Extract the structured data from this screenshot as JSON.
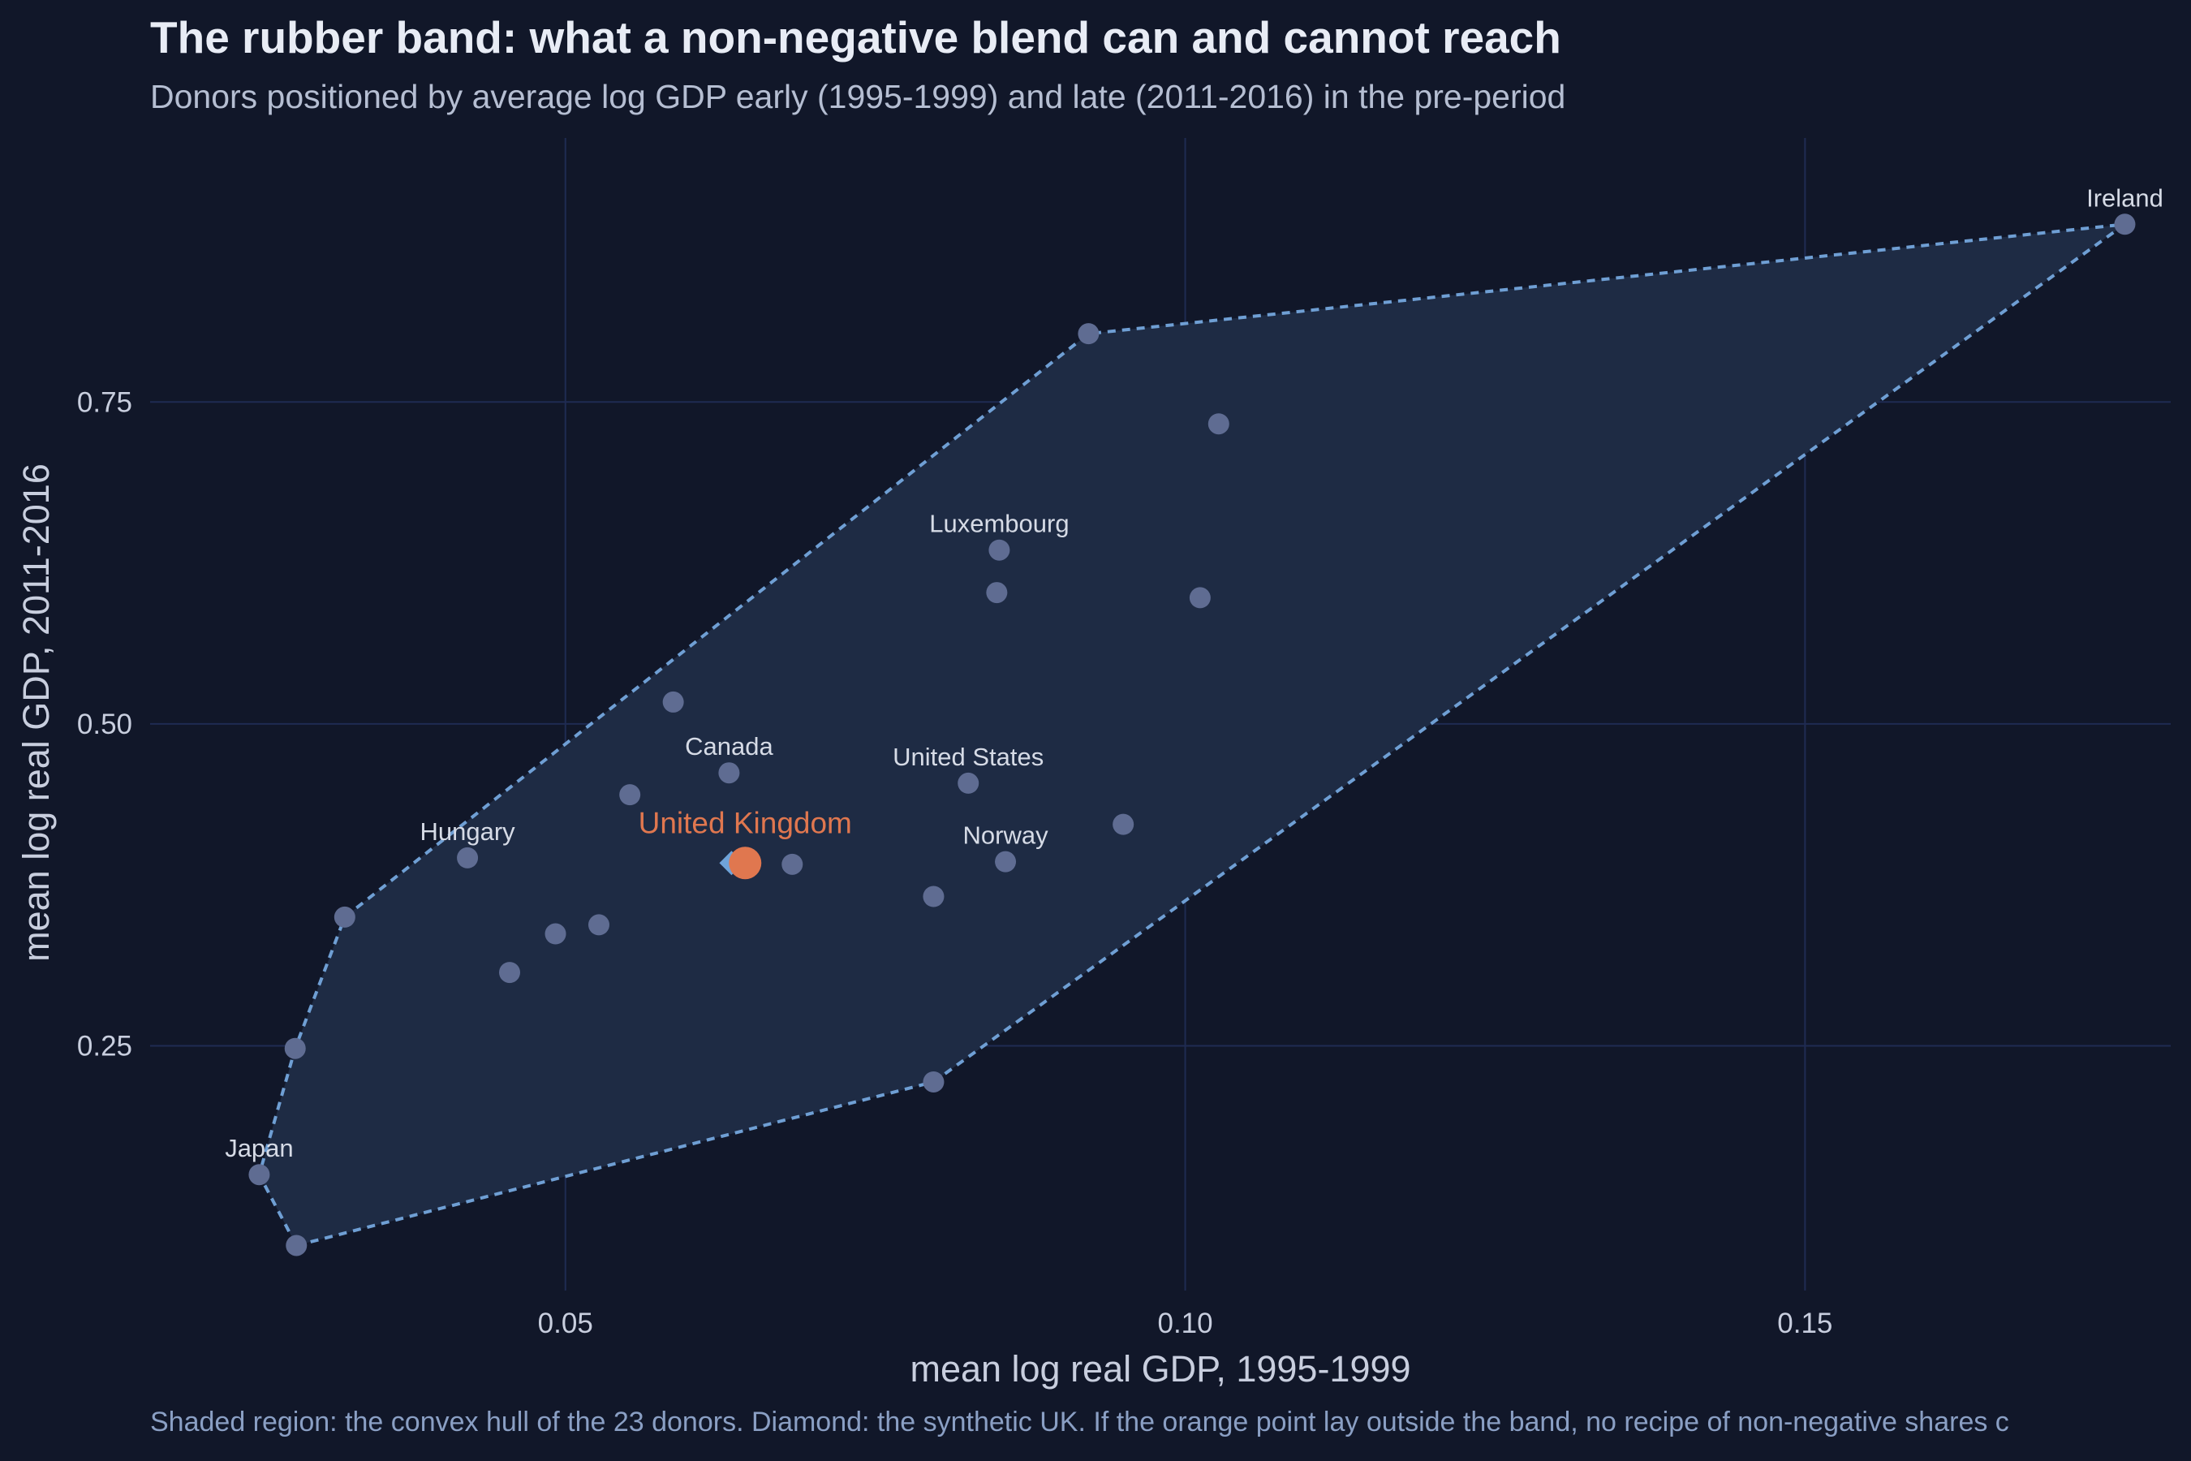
{
  "chart_data": {
    "type": "scatter",
    "title": "The rubber band: what a non-negative blend can and cannot reach",
    "subtitle": "Donors positioned by average log GDP early (1995-1999) and late (2011-2016) in the pre-period",
    "xlabel": "mean log real GDP, 1995-1999",
    "ylabel": "mean log real GDP, 2011-2016",
    "caption": "Shaded region: the convex hull of the 23 donors. Diamond: the synthetic UK. If the orange point lay outside the band, no recipe of non-negative shares c",
    "xlim": [
      0.0165,
      0.1795
    ],
    "ylim": [
      0.06,
      0.955
    ],
    "xticks": [
      0.05,
      0.1,
      0.15
    ],
    "xtick_labels": [
      "0.05",
      "0.10",
      "0.15"
    ],
    "yticks": [
      0.25,
      0.5,
      0.75
    ],
    "ytick_labels": [
      "0.25",
      "0.50",
      "0.75"
    ],
    "grid": true,
    "colors": {
      "background": "#111729",
      "grid": "#1f2b52",
      "hull_fill": "#1e2b44",
      "hull_line": "#6f9fd4",
      "donor": "#5f6c92",
      "target": "#e0774f",
      "synthetic": "#6fa3d9",
      "label": "#d6dbe6",
      "axis_text": "#c8cede"
    },
    "hull": [
      [
        0.0283,
        0.095
      ],
      [
        0.0797,
        0.222
      ],
      [
        0.1758,
        0.888
      ],
      [
        0.0922,
        0.803
      ],
      [
        0.0322,
        0.35
      ],
      [
        0.0282,
        0.248
      ],
      [
        0.0253,
        0.15
      ]
    ],
    "donors": [
      {
        "name": "Ireland",
        "x": 0.1758,
        "y": 0.888
      },
      {
        "name": "",
        "x": 0.0922,
        "y": 0.803
      },
      {
        "name": "",
        "x": 0.1027,
        "y": 0.733
      },
      {
        "name": "Luxembourg",
        "x": 0.085,
        "y": 0.635
      },
      {
        "name": "",
        "x": 0.0848,
        "y": 0.602
      },
      {
        "name": "",
        "x": 0.1012,
        "y": 0.598
      },
      {
        "name": "",
        "x": 0.0587,
        "y": 0.517
      },
      {
        "name": "Canada",
        "x": 0.0632,
        "y": 0.462
      },
      {
        "name": "United States",
        "x": 0.0825,
        "y": 0.454
      },
      {
        "name": "",
        "x": 0.0552,
        "y": 0.445
      },
      {
        "name": "",
        "x": 0.095,
        "y": 0.422
      },
      {
        "name": "Hungary",
        "x": 0.0421,
        "y": 0.396
      },
      {
        "name": "Norway",
        "x": 0.0855,
        "y": 0.393
      },
      {
        "name": "",
        "x": 0.0683,
        "y": 0.391
      },
      {
        "name": "",
        "x": 0.0797,
        "y": 0.366
      },
      {
        "name": "",
        "x": 0.0527,
        "y": 0.344
      },
      {
        "name": "",
        "x": 0.0492,
        "y": 0.337
      },
      {
        "name": "",
        "x": 0.0322,
        "y": 0.35
      },
      {
        "name": "",
        "x": 0.0455,
        "y": 0.307
      },
      {
        "name": "",
        "x": 0.0282,
        "y": 0.248
      },
      {
        "name": "",
        "x": 0.0797,
        "y": 0.222
      },
      {
        "name": "Japan",
        "x": 0.0253,
        "y": 0.15
      },
      {
        "name": "",
        "x": 0.0283,
        "y": 0.095
      }
    ],
    "target": {
      "name": "United Kingdom",
      "x": 0.0645,
      "y": 0.392
    },
    "synthetic": {
      "x": 0.0634,
      "y": 0.392
    }
  }
}
